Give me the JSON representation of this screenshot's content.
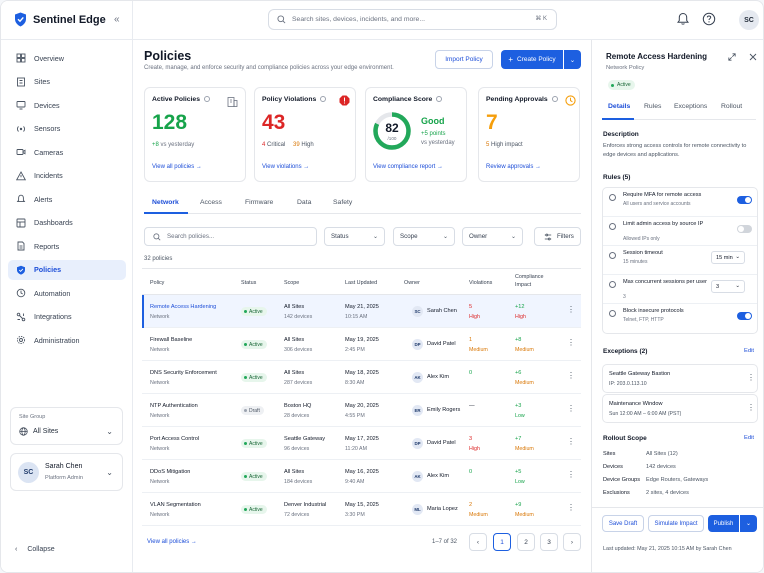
{
  "app": {
    "name": "Sentinel Edge",
    "colors": {
      "accent": "#1d5fe0",
      "danger": "#dc2626",
      "warning": "#d97706",
      "success": "#16a34a"
    }
  },
  "search": {
    "placeholder": "Search sites, devices, incidents, and more...",
    "shortcut": "⌘ K"
  },
  "user": {
    "initials": "SC",
    "name": "Sarah Chen",
    "role": "Platform Admin"
  },
  "nav": {
    "items": [
      {
        "label": "Overview",
        "icon": "grid-icon"
      },
      {
        "label": "Sites",
        "icon": "building-icon"
      },
      {
        "label": "Devices",
        "icon": "monitor-icon"
      },
      {
        "label": "Sensors",
        "icon": "sensor-icon"
      },
      {
        "label": "Cameras",
        "icon": "camera-icon"
      },
      {
        "label": "Incidents",
        "icon": "warning-icon"
      },
      {
        "label": "Alerts",
        "icon": "bell-icon"
      },
      {
        "label": "Dashboards",
        "icon": "dashboard-icon"
      },
      {
        "label": "Reports",
        "icon": "report-icon"
      },
      {
        "label": "Policies",
        "icon": "shield-icon",
        "active": true
      },
      {
        "label": "Automation",
        "icon": "automation-icon"
      },
      {
        "label": "Integrations",
        "icon": "integration-icon"
      },
      {
        "label": "Administration",
        "icon": "gear-icon"
      }
    ]
  },
  "site_group": {
    "label": "Site Group",
    "value": "All Sites"
  },
  "collapse_label": "Collapse",
  "page": {
    "title": "Policies",
    "subtitle": "Create, manage, and enforce security and compliance policies across your edge environment.",
    "import_label": "Import Policy",
    "create_label": "Create Policy"
  },
  "cards": {
    "active": {
      "title": "Active Policies",
      "value": "128",
      "delta": "+8",
      "delta_note": "vs yesterday",
      "link": "View all policies"
    },
    "violations": {
      "title": "Policy Violations",
      "value": "43",
      "critical": "4",
      "critical_label": "Critical",
      "high": "39",
      "high_label": "High",
      "link": "View violations"
    },
    "compliance": {
      "title": "Compliance Score",
      "value": "82",
      "out_of": "/100",
      "score_pct": 82,
      "status": "Good",
      "delta": "+5 points",
      "delta_note": "vs yesterday",
      "link": "View compliance report"
    },
    "approvals": {
      "title": "Pending Approvals",
      "value": "7",
      "high": "5",
      "high_label": "High impact",
      "link": "Review approvals"
    }
  },
  "tabs": [
    "Network",
    "Access",
    "Firmware",
    "Data",
    "Safety"
  ],
  "filters": {
    "search_placeholder": "Search policies...",
    "status": "Status",
    "scope": "Scope",
    "owner": "Owner",
    "filters": "Filters"
  },
  "count": "32 policies",
  "table": {
    "headers": [
      "Policy",
      "Status",
      "Scope",
      "Last Updated",
      "Owner",
      "Violations",
      "Compliance",
      "Impact"
    ],
    "rows": [
      {
        "name": "Remote Access Hardening",
        "type": "Network",
        "status": "Active",
        "scope": "All Sites",
        "devices": "142 devices",
        "date": "May 21, 2025",
        "time": "10:15 AM",
        "owner_initials": "SC",
        "owner": "Sarah Chen",
        "viol": "5",
        "viol_level": "High",
        "comp": "+12",
        "comp_level": "High"
      },
      {
        "name": "Firewall Baseline",
        "type": "Network",
        "status": "Active",
        "scope": "All Sites",
        "devices": "306 devices",
        "date": "May 19, 2025",
        "time": "2:45 PM",
        "owner_initials": "DP",
        "owner": "David Patel",
        "viol": "1",
        "viol_level": "Medium",
        "comp": "+8",
        "comp_level": "Medium"
      },
      {
        "name": "DNS Security Enforcement",
        "type": "Network",
        "status": "Active",
        "scope": "All Sites",
        "devices": "287 devices",
        "date": "May 18, 2025",
        "time": "8:30 AM",
        "owner_initials": "AK",
        "owner": "Alex Kim",
        "viol": "0",
        "viol_level": "",
        "comp": "+6",
        "comp_level": "Medium"
      },
      {
        "name": "NTP Authentication",
        "type": "Network",
        "status": "Draft",
        "scope": "Boston HQ",
        "devices": "28 devices",
        "date": "May 20, 2025",
        "time": "4:55 PM",
        "owner_initials": "ER",
        "owner": "Emily Rogers",
        "viol": "—",
        "viol_level": "",
        "comp": "+3",
        "comp_level": "Low"
      },
      {
        "name": "Port Access Control",
        "type": "Network",
        "status": "Active",
        "scope": "Seattle Gateway",
        "devices": "96 devices",
        "date": "May 17, 2025",
        "time": "11:20 AM",
        "owner_initials": "DP",
        "owner": "David Patel",
        "viol": "3",
        "viol_level": "High",
        "comp": "+7",
        "comp_level": "Medium"
      },
      {
        "name": "DDoS Mitigation",
        "type": "Network",
        "status": "Active",
        "scope": "All Sites",
        "devices": "184 devices",
        "date": "May 16, 2025",
        "time": "9:40 AM",
        "owner_initials": "AK",
        "owner": "Alex Kim",
        "viol": "0",
        "viol_level": "",
        "comp": "+5",
        "comp_level": "Low"
      },
      {
        "name": "VLAN Segmentation",
        "type": "Network",
        "status": "Active",
        "scope": "Denver Industrial",
        "devices": "72 devices",
        "date": "May 15, 2025",
        "time": "3:30 PM",
        "owner_initials": "ML",
        "owner": "Maria Lopez",
        "viol": "2",
        "viol_level": "Medium",
        "comp": "+9",
        "comp_level": "Medium"
      }
    ]
  },
  "footer": {
    "view_all": "View all policies",
    "range": "1–7 of 32",
    "pages": [
      "1",
      "2",
      "3"
    ]
  },
  "panel": {
    "title": "Remote Access Hardening",
    "subtitle": "Network Policy",
    "status": "Active",
    "tabs": [
      "Details",
      "Rules",
      "Exceptions",
      "Rollout"
    ],
    "description_h": "Description",
    "description": "Enforces strong access controls for remote connectivity to edge devices and applications.",
    "rules_h": "Rules (5)",
    "rules": [
      {
        "title": "Require MFA for remote access",
        "sub": "All users and service accounts",
        "control": "toggle",
        "on": true
      },
      {
        "title": "Limit admin access by source IP",
        "sub": "Allowed IPs only",
        "control": "toggle",
        "on": false
      },
      {
        "title": "Session timeout",
        "sub": "15 minutes",
        "control": "select",
        "value": "15 min"
      },
      {
        "title": "Max concurrent sessions per user",
        "sub": "3",
        "control": "select",
        "value": "3"
      },
      {
        "title": "Block insecure protocols",
        "sub": "Telnet, FTP, HTTP",
        "control": "toggle",
        "on": true
      }
    ],
    "exceptions_h": "Exceptions (2)",
    "edit": "Edit",
    "exceptions": [
      {
        "title": "Seattle Gateway Bastion",
        "sub": "IP: 203.0.113.10"
      },
      {
        "title": "Maintenance Window",
        "sub": "Sun 12:00 AM – 6:00 AM (PST)"
      }
    ],
    "scope_h": "Rollout Scope",
    "scope": [
      {
        "k": "Sites",
        "v": "All Sites (12)"
      },
      {
        "k": "Devices",
        "v": "142 devices"
      },
      {
        "k": "Device Groups",
        "v": "Edge Routers, Gateways"
      },
      {
        "k": "Exclusions",
        "v": "2 sites, 4 devices"
      }
    ],
    "save_draft": "Save Draft",
    "simulate": "Simulate Impact",
    "publish": "Publish",
    "updated": "Last updated: May 21, 2025 10:15 AM by Sarah Chen"
  }
}
